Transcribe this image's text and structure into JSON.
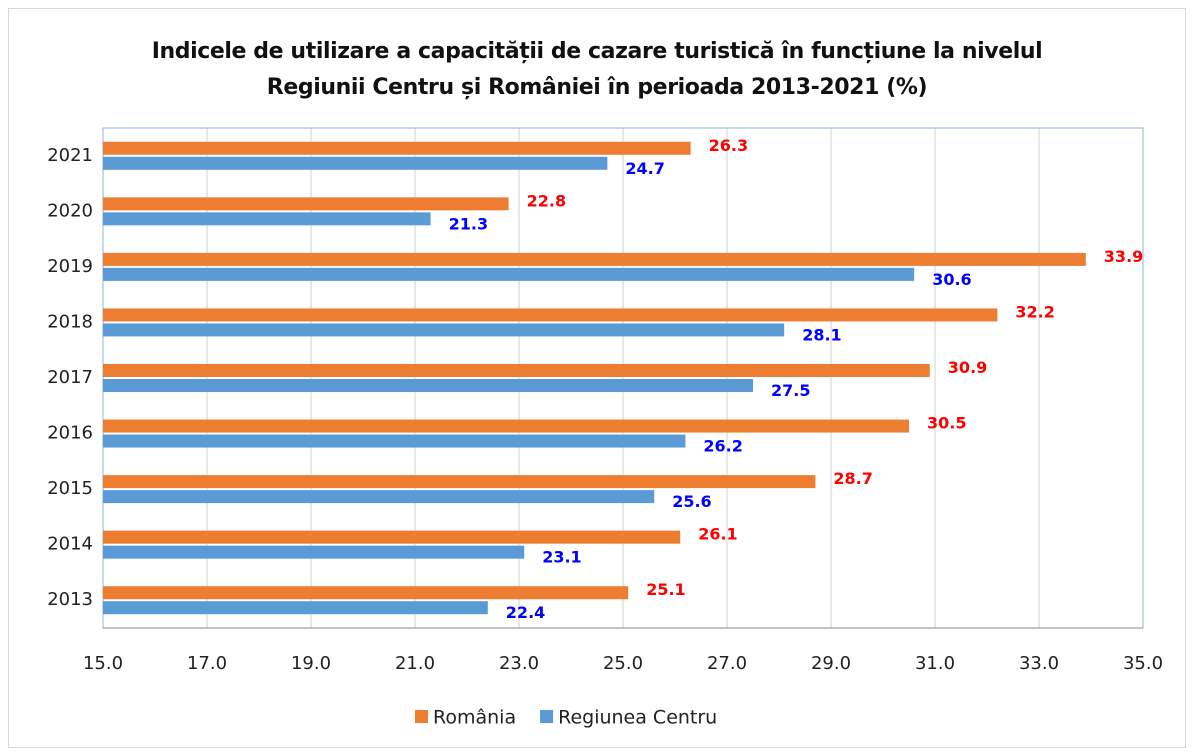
{
  "chart_data": {
    "type": "bar",
    "orientation": "horizontal",
    "title": "Indicele de utilizare a capacității de cazare turistică în funcțiune la nivelul Regiunii Centru și României în perioada 2013-2021 (%)",
    "categories": [
      "2013",
      "2014",
      "2015",
      "2016",
      "2017",
      "2018",
      "2019",
      "2020",
      "2021"
    ],
    "series": [
      {
        "name": "România",
        "color": "#ed7d31",
        "label_color": "#ff0000",
        "values": [
          25.1,
          26.1,
          28.7,
          30.5,
          30.9,
          32.2,
          33.9,
          22.8,
          26.3
        ]
      },
      {
        "name": "Regiunea Centru",
        "color": "#5b9bd5",
        "label_color": "#0000ff",
        "values": [
          22.4,
          23.1,
          25.6,
          26.2,
          27.5,
          28.1,
          30.6,
          21.3,
          24.7
        ]
      }
    ],
    "xlim": [
      15,
      35
    ],
    "xticks": [
      {
        "value": 15,
        "label": "15.0"
      },
      {
        "value": 17,
        "label": "17.0"
      },
      {
        "value": 19,
        "label": "19.0"
      },
      {
        "value": 21,
        "label": "21.0"
      },
      {
        "value": 23,
        "label": "23.0"
      },
      {
        "value": 25,
        "label": "25.0"
      },
      {
        "value": 27,
        "label": "27.0"
      },
      {
        "value": 29,
        "label": "29.0"
      },
      {
        "value": 31,
        "label": "31.0"
      },
      {
        "value": 33,
        "label": "33.0"
      },
      {
        "value": 35,
        "label": "35.0"
      }
    ],
    "grid": true,
    "legend": "bottom"
  }
}
